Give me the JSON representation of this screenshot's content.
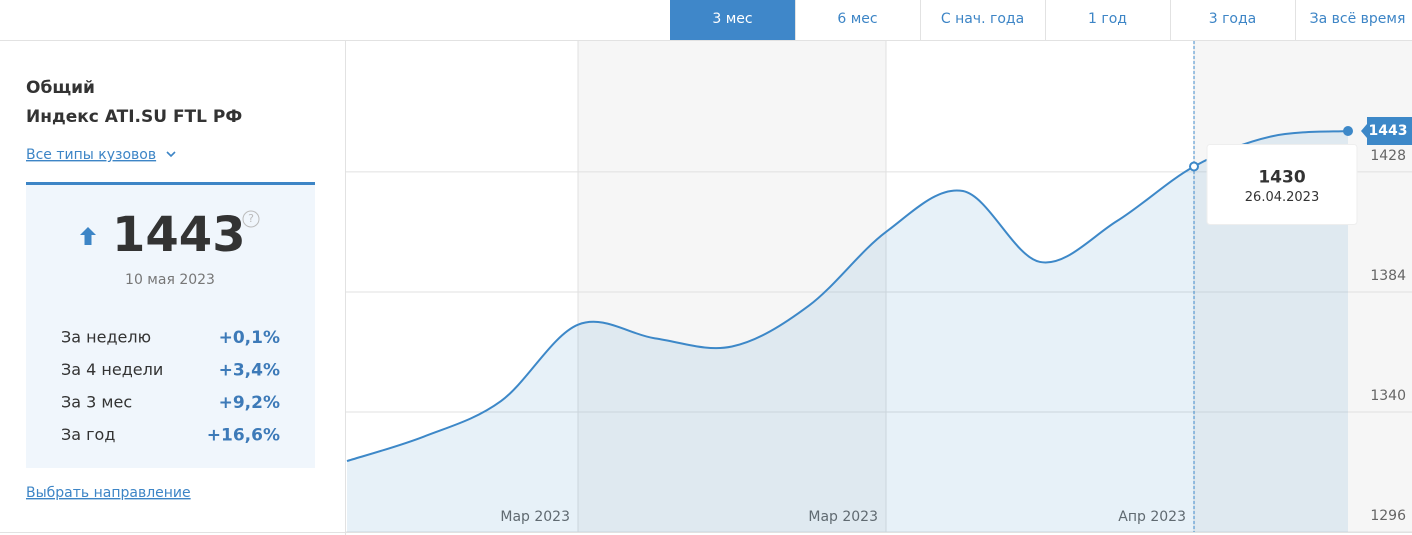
{
  "tabs": [
    "3 мес",
    "6 мес",
    "С нач. года",
    "1 год",
    "3 года",
    "За всё время"
  ],
  "active_tab": 0,
  "summary": {
    "group": "Общий",
    "title": "Индекс ATI.SU FTL РФ",
    "filter": "Все типы кузовов",
    "value": 1443,
    "help": "?",
    "date": "10 мая 2023",
    "rows": [
      {
        "label": "За неделю",
        "value": "+0,1%"
      },
      {
        "label": "За 4 недели",
        "value": "+3,4%"
      },
      {
        "label": "За 3 мес",
        "value": "+9,2%"
      },
      {
        "label": "За год",
        "value": "+16,6%"
      }
    ],
    "link": "Выбрать направление"
  },
  "chart_data": {
    "type": "area",
    "x": [
      "08.02.2023",
      "15.02.2023",
      "22.02.2023",
      "01.03.2023",
      "08.03.2023",
      "15.03.2023",
      "22.03.2023",
      "29.03.2023",
      "05.04.2023",
      "12.04.2023",
      "19.04.2023",
      "26.04.2023",
      "03.05.2023",
      "10.05.2023"
    ],
    "series": [
      {
        "name": "Индекс ATI.SU FTL РФ",
        "color": "#3d88c8",
        "values": [
          1322,
          1331,
          1344,
          1372,
          1367,
          1364,
          1379,
          1406,
          1421,
          1395,
          1410,
          1430,
          1441,
          1443
        ]
      }
    ],
    "xticks": [
      {
        "value": "01.03.2023",
        "label": "Мар 2023"
      },
      {
        "value": "29.03.2023",
        "label": "Мар 2023"
      },
      {
        "value": "26.04.2023",
        "label": "Апр 2023"
      }
    ],
    "ylim": [
      1296,
      1476
    ],
    "yticks": [
      1296,
      1340,
      1384,
      1428
    ],
    "grid": true,
    "tooltip_index": 11
  }
}
